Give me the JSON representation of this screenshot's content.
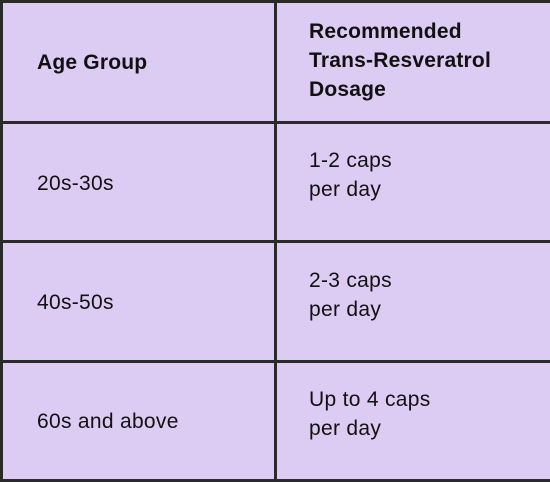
{
  "table": {
    "headers": {
      "age_group": "Age Group",
      "dosage_lines": [
        "Recommended",
        "Trans-Resveratrol",
        "Dosage"
      ]
    },
    "rows": [
      {
        "age_group": "20s-30s",
        "dosage_lines": [
          "1-2 caps",
          "per day"
        ]
      },
      {
        "age_group": "40s-50s",
        "dosage_lines": [
          "2-3 caps",
          "per day"
        ]
      },
      {
        "age_group": "60s and above",
        "dosage_lines": [
          "Up to 4 caps",
          "per day"
        ]
      }
    ]
  },
  "colors": {
    "cell_background": "#dccbf2",
    "border": "#2a2a2a",
    "text": "#111111"
  }
}
